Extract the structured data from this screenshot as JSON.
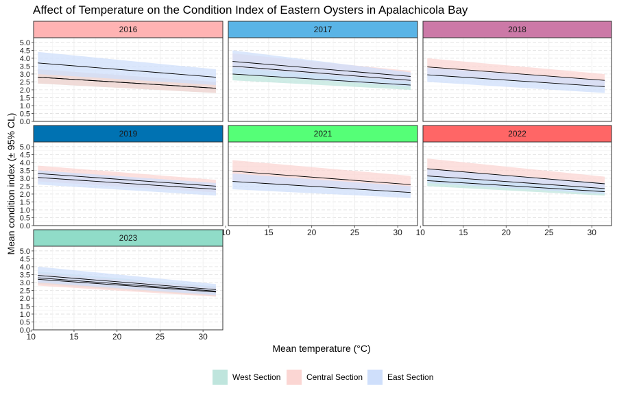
{
  "chart_data": {
    "type": "line",
    "title": "Affect of Temperature on the Condition Index of Eastern Oysters in Apalachicola Bay",
    "xlabel": "Mean temperature (°C)",
    "ylabel": "Mean condition index (± 95% CL)",
    "xlim": [
      10.3,
      32.3
    ],
    "ylim": [
      0,
      5.3
    ],
    "x_ticks": [
      10,
      15,
      20,
      25,
      30
    ],
    "y_ticks": [
      0,
      0.5,
      1,
      1.5,
      2,
      2.5,
      3,
      3.5,
      4,
      4.5,
      5
    ],
    "x_tick_labels": [
      "10",
      "15",
      "20",
      "25",
      "30"
    ],
    "y_tick_labels": [
      "0.0",
      "0.5",
      "1.0",
      "1.5",
      "2.0",
      "2.5",
      "3.0",
      "3.5",
      "4.0",
      "4.5",
      "5.0"
    ],
    "grid": true,
    "legend_position": "bottom",
    "series_colors": {
      "West Section": "#bfe5dd",
      "Central Section": "#fbd6d3",
      "East Section": "#cfdffb"
    },
    "legend": [
      {
        "name": "West Section",
        "color": "#bfe5dd"
      },
      {
        "name": "Central Section",
        "color": "#fbd6d3"
      },
      {
        "name": "East Section",
        "color": "#cfdffb"
      }
    ],
    "panels": [
      {
        "label": "2016",
        "strip_color": "#ffb3b3",
        "series": [
          {
            "name": "West Section",
            "x": [
              10.8,
              31.5
            ],
            "y": [
              2.8,
              2.1
            ],
            "lower": [
              2.4,
              1.8
            ],
            "upper": [
              3.3,
              2.5
            ]
          },
          {
            "name": "Central Section",
            "x": [
              10.8,
              31.5
            ],
            "y": [
              2.8,
              2.1
            ],
            "lower": [
              2.4,
              1.8
            ],
            "upper": [
              3.3,
              2.5
            ]
          },
          {
            "name": "East Section",
            "x": [
              10.8,
              31.5
            ],
            "y": [
              3.7,
              2.8
            ],
            "lower": [
              3.0,
              2.3
            ],
            "upper": [
              4.4,
              3.3
            ]
          }
        ]
      },
      {
        "label": "2017",
        "strip_color": "#5ab4e6",
        "series": [
          {
            "name": "West Section",
            "x": [
              10.8,
              31.5
            ],
            "y": [
              3.0,
              2.3
            ],
            "lower": [
              2.6,
              2.0
            ],
            "upper": [
              3.4,
              2.6
            ]
          },
          {
            "name": "Central Section",
            "x": [
              10.8,
              31.5
            ],
            "y": [
              3.8,
              2.85
            ],
            "lower": [
              3.4,
              2.5
            ],
            "upper": [
              4.3,
              3.2
            ]
          },
          {
            "name": "East Section",
            "x": [
              10.8,
              31.5
            ],
            "y": [
              3.5,
              2.6
            ],
            "lower": [
              3.0,
              2.2
            ],
            "upper": [
              4.5,
              3.1
            ]
          }
        ]
      },
      {
        "label": "2018",
        "strip_color": "#cc79a7",
        "series": [
          {
            "name": "Central Section",
            "x": [
              10.8,
              31.5
            ],
            "y": [
              3.45,
              2.6
            ],
            "lower": [
              3.0,
              2.2
            ],
            "upper": [
              4.0,
              3.0
            ]
          },
          {
            "name": "East Section",
            "x": [
              10.8,
              31.5
            ],
            "y": [
              2.95,
              2.2
            ],
            "lower": [
              2.5,
              1.8
            ],
            "upper": [
              3.4,
              2.6
            ]
          }
        ]
      },
      {
        "label": "2019",
        "strip_color": "#0072b2",
        "series": [
          {
            "name": "Central Section",
            "x": [
              10.8,
              31.5
            ],
            "y": [
              3.3,
              2.5
            ],
            "lower": [
              2.8,
              2.1
            ],
            "upper": [
              3.8,
              2.9
            ]
          },
          {
            "name": "East Section",
            "x": [
              10.8,
              31.5
            ],
            "y": [
              3.05,
              2.3
            ],
            "lower": [
              2.6,
              1.9
            ],
            "upper": [
              3.5,
              2.7
            ]
          }
        ]
      },
      {
        "label": "2021",
        "strip_color": "#55ff77",
        "series": [
          {
            "name": "Central Section",
            "x": [
              10.8,
              31.5
            ],
            "y": [
              3.45,
              2.6
            ],
            "lower": [
              2.8,
              2.1
            ],
            "upper": [
              4.15,
              3.15
            ]
          },
          {
            "name": "East Section",
            "x": [
              10.8,
              31.5
            ],
            "y": [
              2.8,
              2.1
            ],
            "lower": [
              2.3,
              1.75
            ],
            "upper": [
              3.3,
              2.5
            ]
          }
        ]
      },
      {
        "label": "2022",
        "strip_color": "#ff6666",
        "series": [
          {
            "name": "West Section",
            "x": [
              10.8,
              31.5
            ],
            "y": [
              2.85,
              2.15
            ],
            "lower": [
              2.5,
              1.9
            ],
            "upper": [
              3.2,
              2.4
            ]
          },
          {
            "name": "Central Section",
            "x": [
              10.8,
              31.5
            ],
            "y": [
              3.6,
              2.65
            ],
            "lower": [
              3.1,
              2.3
            ],
            "upper": [
              4.25,
              3.1
            ]
          },
          {
            "name": "East Section",
            "x": [
              10.8,
              31.5
            ],
            "y": [
              3.15,
              2.35
            ],
            "lower": [
              2.7,
              2.0
            ],
            "upper": [
              3.6,
              2.7
            ]
          }
        ]
      },
      {
        "label": "2023",
        "strip_color": "#90dcc8",
        "series": [
          {
            "name": "West Section",
            "x": [
              10.8,
              31.5
            ],
            "y": [
              3.3,
              2.45
            ],
            "lower": [
              2.9,
              2.15
            ],
            "upper": [
              3.7,
              2.75
            ]
          },
          {
            "name": "Central Section",
            "x": [
              10.8,
              31.5
            ],
            "y": [
              3.2,
              2.4
            ],
            "lower": [
              2.8,
              2.1
            ],
            "upper": [
              3.6,
              2.7
            ]
          },
          {
            "name": "East Section",
            "x": [
              10.8,
              31.5
            ],
            "y": [
              3.45,
              2.55
            ],
            "lower": [
              3.0,
              2.2
            ],
            "upper": [
              4.0,
              2.9
            ]
          }
        ]
      }
    ]
  }
}
